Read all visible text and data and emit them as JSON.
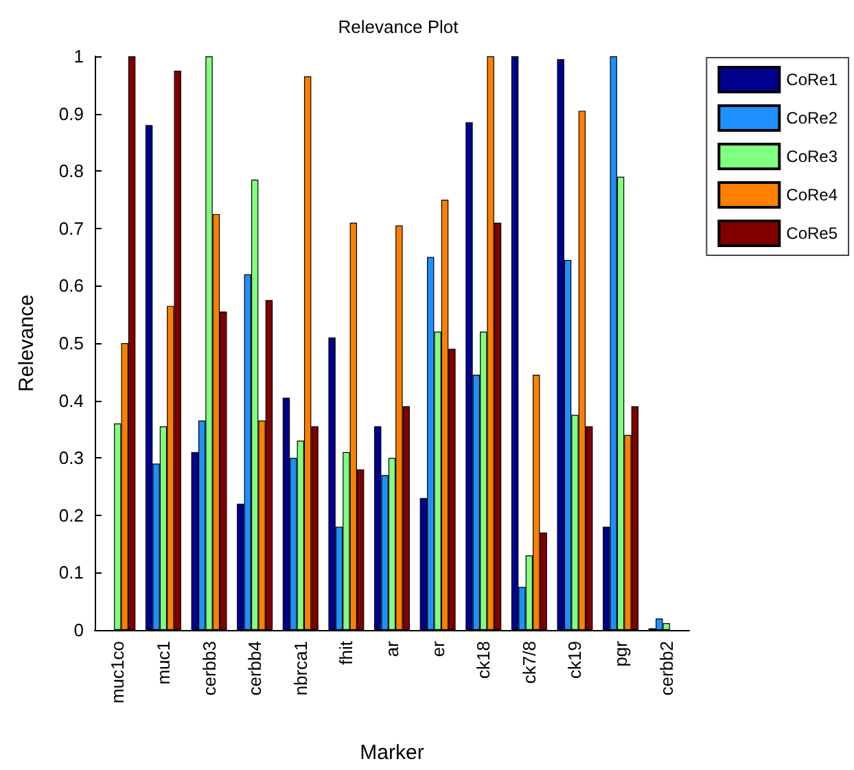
{
  "chart_data": {
    "type": "bar",
    "title": "Relevance Plot",
    "xlabel": "Marker",
    "ylabel": "Relevance",
    "categories": [
      "muc1co",
      "muc1",
      "cerbb3",
      "cerbb4",
      "nbrca1",
      "fhit",
      "ar",
      "er",
      "ck18",
      "ck7/8",
      "ck19",
      "pgr",
      "cerbb2"
    ],
    "series": [
      {
        "name": "CoRe1",
        "color": "#00008f",
        "values": [
          null,
          0.88,
          0.31,
          0.22,
          0.405,
          0.51,
          0.355,
          0.23,
          0.885,
          1.0,
          0.995,
          0.18,
          0.003
        ]
      },
      {
        "name": "CoRe2",
        "color": "#1e90ff",
        "values": [
          null,
          0.29,
          0.365,
          0.62,
          0.3,
          0.18,
          0.27,
          0.65,
          0.445,
          0.075,
          0.645,
          1.0,
          0.02
        ]
      },
      {
        "name": "CoRe3",
        "color": "#80ff80",
        "values": [
          0.36,
          0.355,
          1.0,
          0.785,
          0.33,
          0.31,
          0.3,
          0.52,
          0.52,
          0.13,
          0.375,
          0.79,
          0.012
        ]
      },
      {
        "name": "CoRe4",
        "color": "#ff8000",
        "values": [
          0.5,
          0.565,
          0.725,
          0.365,
          0.965,
          0.71,
          0.705,
          0.75,
          1.0,
          0.445,
          0.905,
          0.34,
          null
        ]
      },
      {
        "name": "CoRe5",
        "color": "#800000",
        "values": [
          1.0,
          0.975,
          0.555,
          0.575,
          0.355,
          0.28,
          0.39,
          0.49,
          0.71,
          0.17,
          0.355,
          0.39,
          null
        ]
      }
    ],
    "ylim": [
      0,
      1
    ],
    "yticks": [
      0,
      0.1,
      0.2,
      0.3,
      0.4,
      0.5,
      0.6,
      0.7,
      0.8,
      0.9,
      1
    ],
    "grid": false,
    "legend": "top right"
  }
}
